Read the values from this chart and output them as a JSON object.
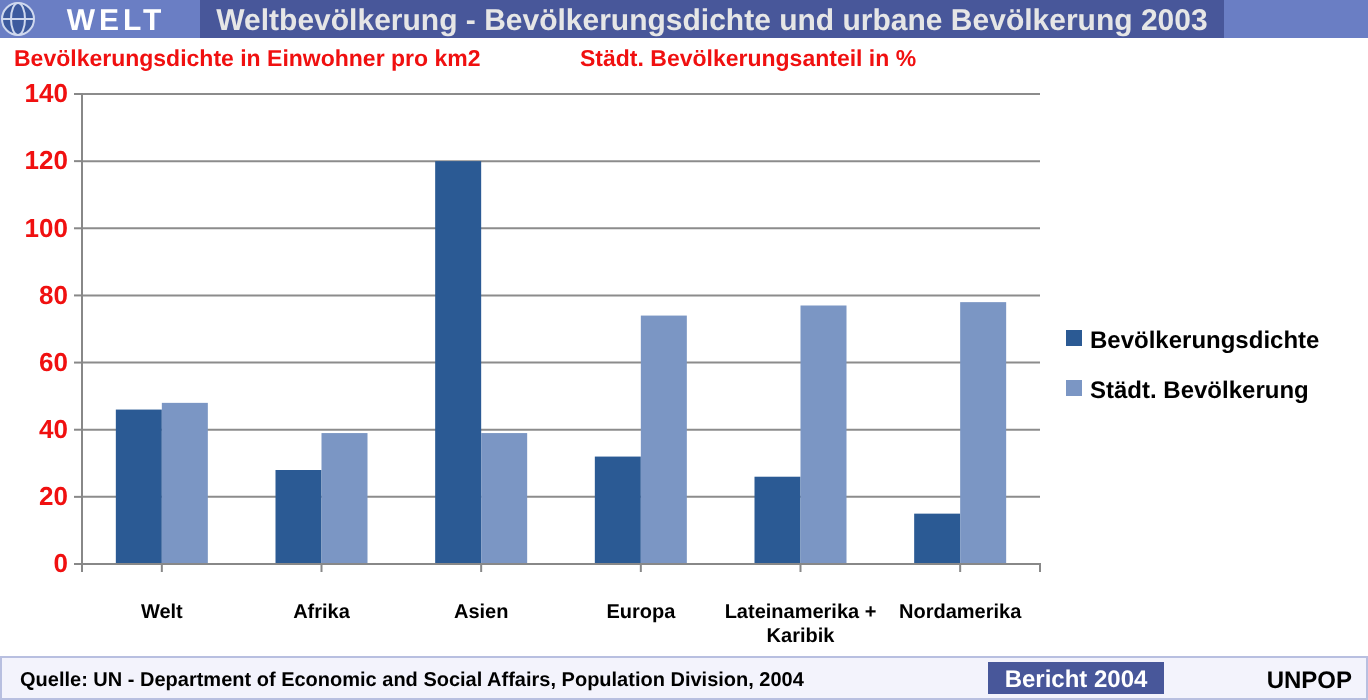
{
  "chart_data": {
    "type": "bar",
    "title": "Weltbevölkerung -  Bevölkerungsdichte und urbane Bevölkerung 2003",
    "ylabel": "Bevölkerungsdichte in Einwohner pro km2",
    "categories": [
      "Welt",
      "Afrika",
      "Asien",
      "Europa",
      "Lateinamerika + Karibik",
      "Nordamerika"
    ],
    "series": [
      {
        "name": "Bevölkerungsdichte",
        "color": "#2b5a94",
        "values": [
          46,
          28,
          120,
          32,
          26,
          15
        ]
      },
      {
        "name": "Städt. Bevölkerung",
        "color": "#7b96c4",
        "values": [
          48,
          39,
          39,
          74,
          77,
          78
        ]
      }
    ],
    "ylim": [
      0,
      140
    ],
    "yticks": [
      0,
      20,
      40,
      60,
      80,
      100,
      120,
      140
    ],
    "grid": "y",
    "legend": "right",
    "annotations": [
      "WELT",
      "Städt. Bevölkerungsanteil in %",
      "Quelle: UN -  Department of Economic and Social Affairs, Population Division, 2004",
      "Bericht 2004",
      "UNPOP"
    ]
  }
}
